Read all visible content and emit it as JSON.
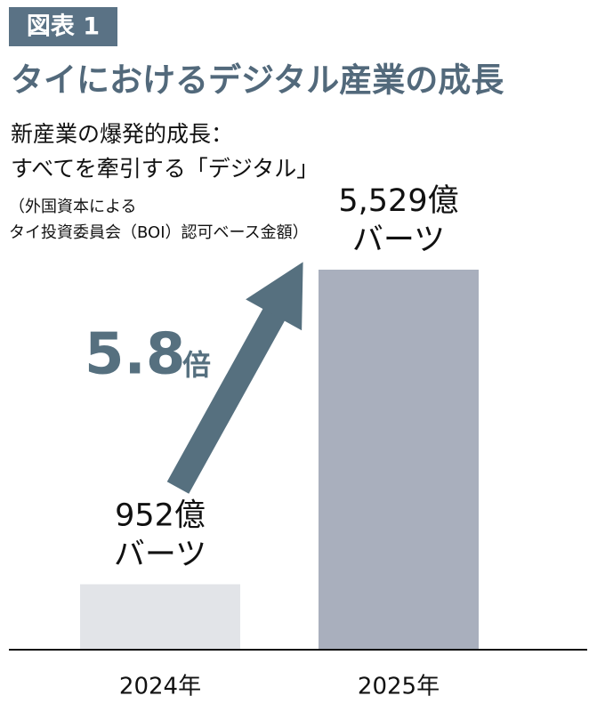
{
  "chart_data": {
    "type": "bar",
    "figure_label": "図表 1",
    "title": "タイにおけるデジタル産業の成長",
    "subtitle": [
      "新産業の爆発的成長：",
      "すべてを牽引する「デジタル」"
    ],
    "note": [
      "（外国資本による",
      "タイ投資委員会（BOI）認可ベース金額）"
    ],
    "categories": [
      "2024年",
      "2025年"
    ],
    "values": [
      952,
      5529
    ],
    "value_labels": [
      [
        "952億",
        "バーツ"
      ],
      [
        "5,529億",
        "バーツ"
      ]
    ],
    "colors": [
      "#e2e4e8",
      "#a9afbd"
    ],
    "annotation": {
      "number": "5.8",
      "unit": "倍"
    }
  }
}
